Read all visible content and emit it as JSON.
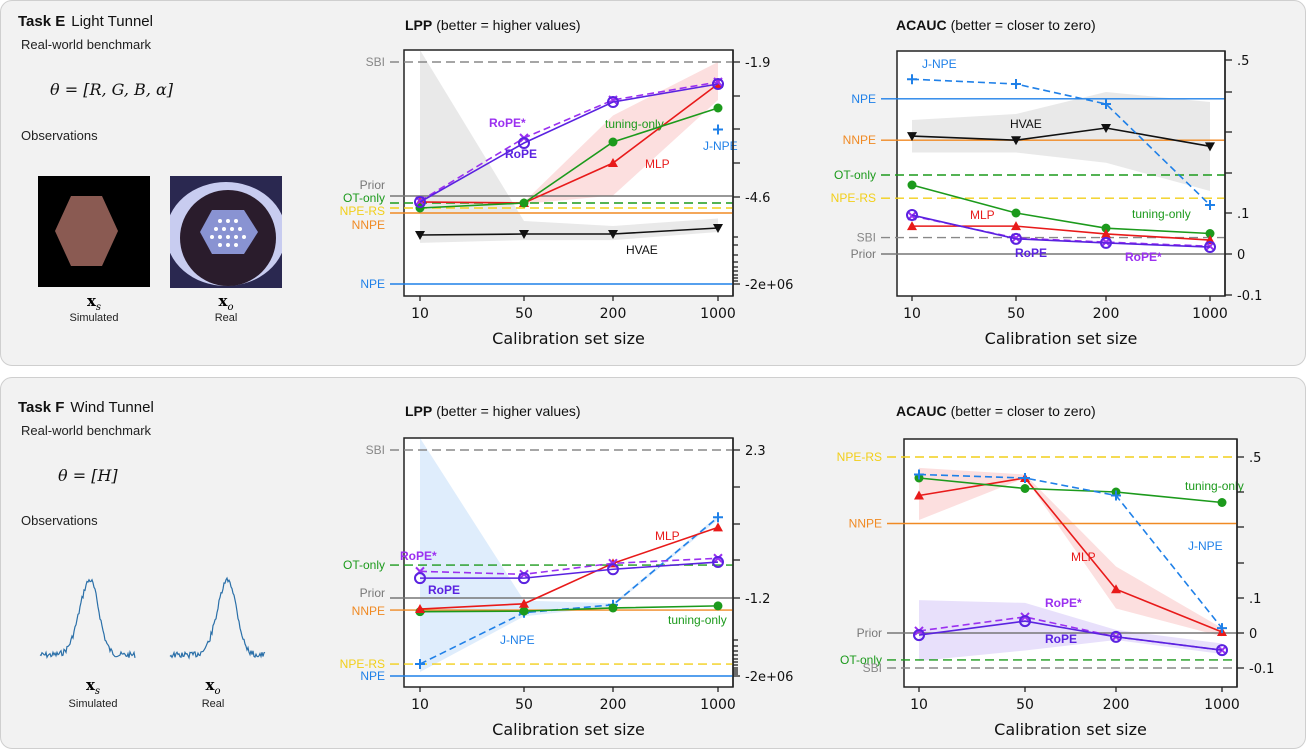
{
  "panels": [
    {
      "task_label": "Task E",
      "task_name": "Light Tunnel",
      "subtitle": "Real-world benchmark",
      "theta": "θ = [R, G, B, α]",
      "observations_label": "Observations",
      "sim_symbol": "x",
      "sim_sub": "s",
      "sim_label": "Simulated",
      "real_symbol": "x",
      "real_sub": "o",
      "real_label": "Real"
    },
    {
      "task_label": "Task F",
      "task_name": "Wind Tunnel",
      "subtitle": "Real-world benchmark",
      "theta": "θ = [H]",
      "observations_label": "Observations",
      "sim_symbol": "x",
      "sim_sub": "s",
      "sim_label": "Simulated",
      "real_symbol": "x",
      "real_sub": "o",
      "real_label": "Real"
    }
  ],
  "colors": {
    "RoPE": "#5a22e0",
    "RoPE*": "#9b30f0",
    "MLP": "#e81a1a",
    "tuning-only": "#1c9a1c",
    "J-NPE": "#1f80e8",
    "HVAE": "#111111",
    "NPE": "#1f80e8",
    "NNPE": "#f08a24",
    "NPE-RS": "#f2cf1a",
    "OT-only": "#1c9a1c",
    "SBI": "#888888",
    "Prior": "#777777"
  },
  "chart_data": [
    {
      "type": "line",
      "title": "LPP",
      "subtitle": "(better = higher values)",
      "xlabel": "Calibration set size",
      "categories": [
        "10",
        "50",
        "200",
        "1000"
      ],
      "y_tick_labels": [
        "-1.9",
        "-4.6",
        "-2e+06"
      ],
      "grid": false,
      "reference_lines": [
        {
          "name": "SBI",
          "value": -1.9,
          "dashed": true
        },
        {
          "name": "Prior",
          "value": -4.58,
          "dashed": false
        },
        {
          "name": "OT-only",
          "value": -4.72,
          "dashed": true
        },
        {
          "name": "NPE-RS",
          "value": -4.82,
          "dashed": true
        },
        {
          "name": "NNPE",
          "value": -4.92,
          "dashed": false
        },
        {
          "name": "NPE",
          "value": -2000000,
          "dashed": false
        }
      ],
      "series": [
        {
          "name": "HVAE",
          "marker": "triangle-down",
          "dashed": false,
          "values": [
            -5.36,
            -5.34,
            -5.34,
            -5.22
          ],
          "band_upper": [
            -1.66,
            -5.08,
            -5.18,
            -5.03
          ],
          "band_lower": [
            -7.5,
            -6.5,
            -6.5,
            -5.3
          ]
        },
        {
          "name": "MLP",
          "marker": "triangle-up",
          "dashed": false,
          "values": [
            -4.7,
            -4.72,
            -3.92,
            -2.34
          ],
          "band_upper": [
            -4.68,
            -4.7,
            -2.97,
            -1.9
          ],
          "band_lower": [
            -4.72,
            -4.74,
            -4.57,
            -2.66
          ]
        },
        {
          "name": "tuning-only",
          "marker": "circle",
          "dashed": false,
          "values": [
            -4.82,
            -4.72,
            -3.5,
            -2.82
          ]
        },
        {
          "name": "J-NPE",
          "marker": "plus",
          "dashed": true,
          "values": [
            null,
            null,
            null,
            -3.25
          ]
        },
        {
          "name": "RoPE*",
          "marker": "x",
          "dashed": true,
          "values": [
            -4.68,
            -3.42,
            -2.66,
            -2.3
          ]
        },
        {
          "name": "RoPE",
          "marker": "open-circle",
          "dashed": false,
          "values": [
            -4.7,
            -3.52,
            -2.7,
            -2.34
          ]
        }
      ]
    },
    {
      "type": "line",
      "title": "ACAUC",
      "subtitle": "(better = closer to zero)",
      "xlabel": "Calibration set size",
      "categories": [
        "10",
        "50",
        "200",
        "1000"
      ],
      "y_tick_labels": [
        ".5",
        ".1",
        "0",
        "-0.1"
      ],
      "grid": false,
      "reference_lines": [
        {
          "name": "NPE",
          "value": 0.383,
          "dashed": false
        },
        {
          "name": "NNPE",
          "value": 0.28,
          "dashed": false
        },
        {
          "name": "OT-only",
          "value": 0.195,
          "dashed": true
        },
        {
          "name": "NPE-RS",
          "value": 0.137,
          "dashed": true
        },
        {
          "name": "SBI",
          "value": 0.04,
          "dashed": true
        },
        {
          "name": "Prior",
          "value": 0,
          "dashed": false
        }
      ],
      "series": [
        {
          "name": "HVAE",
          "marker": "triangle-down",
          "dashed": false,
          "values": [
            0.29,
            0.28,
            0.31,
            0.265
          ],
          "band_upper": [
            0.33,
            0.345,
            0.4,
            0.375
          ],
          "band_lower": [
            0.25,
            0.25,
            0.225,
            0.155
          ]
        },
        {
          "name": "J-NPE",
          "marker": "plus",
          "dashed": true,
          "values": [
            0.44,
            0.425,
            0.37,
            0.12
          ]
        },
        {
          "name": "tuning-only",
          "marker": "circle",
          "dashed": false,
          "values": [
            0.17,
            0.1,
            0.063,
            0.05
          ]
        },
        {
          "name": "MLP",
          "marker": "triangle-up",
          "dashed": false,
          "values": [
            0.068,
            0.068,
            0.049,
            0.034
          ]
        },
        {
          "name": "RoPE*",
          "marker": "x",
          "dashed": true,
          "values": [
            0.093,
            0.039,
            0.029,
            0.019
          ]
        },
        {
          "name": "RoPE",
          "marker": "open-circle",
          "dashed": false,
          "values": [
            0.095,
            0.037,
            0.027,
            0.017
          ]
        }
      ]
    },
    {
      "type": "line",
      "title": "LPP",
      "subtitle": "(better = higher values)",
      "xlabel": "Calibration set size",
      "categories": [
        "10",
        "50",
        "200",
        "1000"
      ],
      "y_tick_labels": [
        "2.3",
        "-1.2",
        "-2e+06"
      ],
      "grid": false,
      "reference_lines": [
        {
          "name": "SBI",
          "value": 2.3,
          "dashed": true
        },
        {
          "name": "OT-only",
          "value": -0.42,
          "dashed": true
        },
        {
          "name": "Prior",
          "value": -1.2,
          "dashed": false
        },
        {
          "name": "NNPE",
          "value": -1.43,
          "dashed": false
        },
        {
          "name": "NPE-RS",
          "value": -1200,
          "dashed": true
        },
        {
          "name": "NPE",
          "value": -2000000,
          "dashed": false
        }
      ],
      "series": [
        {
          "name": "J-NPE",
          "marker": "plus",
          "dashed": true,
          "values": [
            -1200,
            -1.48,
            -1.33,
            0.71
          ],
          "band_upper": [
            2.6,
            -1.25,
            -1.3,
            0.75
          ],
          "band_lower": [
            -100000,
            -1.55,
            -1.36,
            0.65
          ]
        },
        {
          "name": "tuning-only",
          "marker": "circle",
          "dashed": false,
          "values": [
            -1.46,
            -1.45,
            -1.39,
            -1.35
          ]
        },
        {
          "name": "MLP",
          "marker": "triangle-up",
          "dashed": false,
          "values": [
            -1.41,
            -1.31,
            -0.38,
            0.47
          ]
        },
        {
          "name": "RoPE*",
          "marker": "x",
          "dashed": true,
          "values": [
            -0.57,
            -0.64,
            -0.38,
            -0.26
          ]
        },
        {
          "name": "RoPE",
          "marker": "open-circle",
          "dashed": false,
          "values": [
            -0.73,
            -0.73,
            -0.52,
            -0.35
          ]
        }
      ]
    },
    {
      "type": "line",
      "title": "ACAUC",
      "subtitle": "(better = closer to zero)",
      "xlabel": "Calibration set size",
      "categories": [
        "10",
        "50",
        "200",
        "1000"
      ],
      "y_tick_labels": [
        ".5",
        ".1",
        "0",
        "-0.1"
      ],
      "grid": false,
      "reference_lines": [
        {
          "name": "NPE-RS",
          "value": 0.5,
          "dashed": true
        },
        {
          "name": "NNPE",
          "value": 0.31,
          "dashed": false
        },
        {
          "name": "Prior",
          "value": 0,
          "dashed": false
        },
        {
          "name": "OT-only",
          "value": -0.077,
          "dashed": true
        },
        {
          "name": "SBI",
          "value": -0.1,
          "dashed": true
        }
      ],
      "series": [
        {
          "name": "MLP",
          "marker": "triangle-up",
          "dashed": false,
          "values": [
            0.39,
            0.44,
            0.125,
            0.003
          ],
          "band_upper": [
            0.469,
            0.45,
            0.19,
            0.014
          ],
          "band_lower": [
            0.32,
            0.44,
            0.07,
            -0.01
          ]
        },
        {
          "name": "tuning-only",
          "marker": "circle",
          "dashed": false,
          "values": [
            0.44,
            0.41,
            0.4,
            0.37
          ]
        },
        {
          "name": "J-NPE",
          "marker": "plus",
          "dashed": true,
          "values": [
            0.45,
            0.44,
            0.39,
            0.014
          ]
        },
        {
          "name": "RoPE*",
          "marker": "x",
          "dashed": true,
          "values": [
            0.006,
            0.046,
            -0.011,
            -0.049
          ]
        },
        {
          "name": "RoPE",
          "marker": "open-circle",
          "dashed": false,
          "values": [
            -0.006,
            0.034,
            -0.011,
            -0.049
          ],
          "band_upper": [
            0.094,
            0.086,
            0.009,
            -0.03
          ],
          "band_lower": [
            -0.08,
            -0.05,
            -0.02,
            -0.06
          ]
        }
      ]
    }
  ]
}
